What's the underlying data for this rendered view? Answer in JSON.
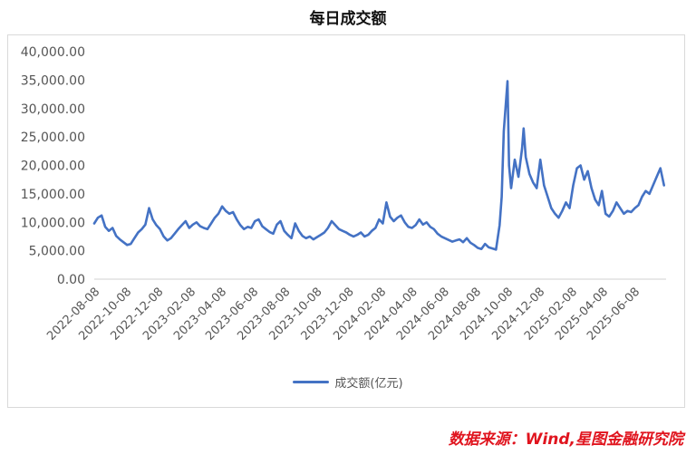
{
  "colors": {
    "series": "#4472c4",
    "source": "#e0141e",
    "axis": "#d0d0d0"
  },
  "source_text": "数据来源：Wind,星图金融研究院",
  "chart_data": {
    "type": "line",
    "title": "每日成交额",
    "xlabel": "",
    "ylabel": "",
    "ylim": [
      0,
      40000
    ],
    "ytick_labels": [
      "0.00",
      "5,000.00",
      "10,000.00",
      "15,000.00",
      "20,000.00",
      "25,000.00",
      "30,000.00",
      "35,000.00",
      "40,000.00"
    ],
    "xtick_labels": [
      "2022-08-08",
      "2022-10-08",
      "2022-12-08",
      "2023-02-08",
      "2023-04-08",
      "2023-06-08",
      "2023-08-08",
      "2023-10-08",
      "2023-12-08",
      "2024-02-08",
      "2024-04-08",
      "2024-06-08",
      "2024-08-08",
      "2024-10-08",
      "2024-12-08",
      "2025-02-08",
      "2025-04-08",
      "2025-06-08"
    ],
    "x_range": [
      "2022-08-08",
      "2025-08-08"
    ],
    "grid": false,
    "legend": "bottom",
    "series": [
      {
        "name": "成交额(亿元)",
        "points": [
          [
            "2022-08-08",
            9800
          ],
          [
            "2022-08-15",
            10800
          ],
          [
            "2022-08-22",
            11200
          ],
          [
            "2022-08-29",
            9200
          ],
          [
            "2022-09-05",
            8500
          ],
          [
            "2022-09-12",
            9000
          ],
          [
            "2022-09-19",
            7600
          ],
          [
            "2022-09-26",
            7000
          ],
          [
            "2022-10-03",
            6500
          ],
          [
            "2022-10-10",
            6000
          ],
          [
            "2022-10-17",
            6200
          ],
          [
            "2022-10-24",
            7200
          ],
          [
            "2022-10-31",
            8200
          ],
          [
            "2022-11-07",
            8800
          ],
          [
            "2022-11-14",
            9600
          ],
          [
            "2022-11-21",
            12500
          ],
          [
            "2022-11-28",
            10500
          ],
          [
            "2022-12-05",
            9500
          ],
          [
            "2022-12-12",
            8800
          ],
          [
            "2022-12-19",
            7500
          ],
          [
            "2022-12-26",
            6800
          ],
          [
            "2023-01-02",
            7200
          ],
          [
            "2023-01-09",
            8000
          ],
          [
            "2023-01-16",
            8800
          ],
          [
            "2023-01-23",
            9500
          ],
          [
            "2023-01-30",
            10200
          ],
          [
            "2023-02-06",
            9000
          ],
          [
            "2023-02-13",
            9600
          ],
          [
            "2023-02-20",
            10000
          ],
          [
            "2023-02-27",
            9300
          ],
          [
            "2023-03-06",
            9000
          ],
          [
            "2023-03-13",
            8800
          ],
          [
            "2023-03-20",
            9800
          ],
          [
            "2023-03-27",
            10800
          ],
          [
            "2023-04-03",
            11500
          ],
          [
            "2023-04-10",
            12800
          ],
          [
            "2023-04-17",
            12000
          ],
          [
            "2023-04-24",
            11500
          ],
          [
            "2023-05-01",
            11800
          ],
          [
            "2023-05-08",
            10500
          ],
          [
            "2023-05-15",
            9500
          ],
          [
            "2023-05-22",
            8800
          ],
          [
            "2023-05-29",
            9200
          ],
          [
            "2023-06-05",
            9000
          ],
          [
            "2023-06-12",
            10200
          ],
          [
            "2023-06-19",
            10500
          ],
          [
            "2023-06-26",
            9300
          ],
          [
            "2023-07-03",
            8800
          ],
          [
            "2023-07-10",
            8300
          ],
          [
            "2023-07-17",
            8000
          ],
          [
            "2023-07-24",
            9600
          ],
          [
            "2023-07-31",
            10200
          ],
          [
            "2023-08-07",
            8500
          ],
          [
            "2023-08-14",
            7800
          ],
          [
            "2023-08-21",
            7200
          ],
          [
            "2023-08-28",
            9800
          ],
          [
            "2023-09-04",
            8500
          ],
          [
            "2023-09-11",
            7600
          ],
          [
            "2023-09-18",
            7200
          ],
          [
            "2023-09-25",
            7500
          ],
          [
            "2023-10-02",
            7000
          ],
          [
            "2023-10-09",
            7400
          ],
          [
            "2023-10-16",
            7800
          ],
          [
            "2023-10-23",
            8200
          ],
          [
            "2023-10-30",
            9000
          ],
          [
            "2023-11-06",
            10200
          ],
          [
            "2023-11-13",
            9500
          ],
          [
            "2023-11-20",
            8800
          ],
          [
            "2023-11-27",
            8500
          ],
          [
            "2023-12-04",
            8200
          ],
          [
            "2023-12-11",
            7800
          ],
          [
            "2023-12-18",
            7500
          ],
          [
            "2023-12-25",
            7800
          ],
          [
            "2024-01-01",
            8200
          ],
          [
            "2024-01-08",
            7500
          ],
          [
            "2024-01-15",
            7800
          ],
          [
            "2024-01-22",
            8500
          ],
          [
            "2024-01-29",
            9000
          ],
          [
            "2024-02-05",
            10500
          ],
          [
            "2024-02-12",
            9800
          ],
          [
            "2024-02-19",
            13500
          ],
          [
            "2024-02-26",
            11000
          ],
          [
            "2024-03-04",
            10200
          ],
          [
            "2024-03-11",
            10800
          ],
          [
            "2024-03-18",
            11200
          ],
          [
            "2024-03-25",
            10000
          ],
          [
            "2024-04-01",
            9200
          ],
          [
            "2024-04-08",
            9000
          ],
          [
            "2024-04-15",
            9500
          ],
          [
            "2024-04-22",
            10500
          ],
          [
            "2024-04-29",
            9600
          ],
          [
            "2024-05-06",
            10000
          ],
          [
            "2024-05-13",
            9200
          ],
          [
            "2024-05-20",
            8800
          ],
          [
            "2024-05-27",
            8000
          ],
          [
            "2024-06-03",
            7500
          ],
          [
            "2024-06-10",
            7200
          ],
          [
            "2024-06-17",
            6900
          ],
          [
            "2024-06-24",
            6600
          ],
          [
            "2024-07-01",
            6800
          ],
          [
            "2024-07-08",
            7000
          ],
          [
            "2024-07-15",
            6500
          ],
          [
            "2024-07-22",
            7200
          ],
          [
            "2024-07-29",
            6400
          ],
          [
            "2024-08-05",
            6000
          ],
          [
            "2024-08-12",
            5500
          ],
          [
            "2024-08-19",
            5300
          ],
          [
            "2024-08-26",
            6200
          ],
          [
            "2024-09-02",
            5600
          ],
          [
            "2024-09-09",
            5400
          ],
          [
            "2024-09-16",
            5200
          ],
          [
            "2024-09-23",
            9500
          ],
          [
            "2024-09-27",
            14500
          ],
          [
            "2024-10-01",
            26000
          ],
          [
            "2024-10-08",
            34800
          ],
          [
            "2024-10-11",
            20000
          ],
          [
            "2024-10-15",
            16000
          ],
          [
            "2024-10-22",
            21000
          ],
          [
            "2024-10-29",
            18000
          ],
          [
            "2024-11-05",
            23000
          ],
          [
            "2024-11-08",
            26500
          ],
          [
            "2024-11-12",
            21500
          ],
          [
            "2024-11-19",
            18500
          ],
          [
            "2024-11-26",
            17000
          ],
          [
            "2024-12-03",
            16000
          ],
          [
            "2024-12-10",
            21000
          ],
          [
            "2024-12-17",
            16500
          ],
          [
            "2024-12-24",
            14500
          ],
          [
            "2024-12-31",
            12500
          ],
          [
            "2025-01-07",
            11500
          ],
          [
            "2025-01-14",
            10800
          ],
          [
            "2025-01-21",
            12000
          ],
          [
            "2025-01-28",
            13500
          ],
          [
            "2025-02-04",
            12500
          ],
          [
            "2025-02-11",
            16500
          ],
          [
            "2025-02-18",
            19500
          ],
          [
            "2025-02-25",
            20000
          ],
          [
            "2025-03-04",
            17500
          ],
          [
            "2025-03-11",
            19000
          ],
          [
            "2025-03-18",
            16000
          ],
          [
            "2025-03-25",
            14000
          ],
          [
            "2025-04-01",
            13000
          ],
          [
            "2025-04-07",
            15500
          ],
          [
            "2025-04-14",
            11500
          ],
          [
            "2025-04-21",
            11000
          ],
          [
            "2025-04-28",
            12000
          ],
          [
            "2025-05-05",
            13500
          ],
          [
            "2025-05-12",
            12500
          ],
          [
            "2025-05-19",
            11500
          ],
          [
            "2025-05-26",
            12000
          ],
          [
            "2025-06-02",
            11800
          ],
          [
            "2025-06-09",
            12500
          ],
          [
            "2025-06-16",
            13000
          ],
          [
            "2025-06-23",
            14500
          ],
          [
            "2025-06-30",
            15500
          ],
          [
            "2025-07-07",
            15000
          ],
          [
            "2025-07-14",
            16500
          ],
          [
            "2025-07-21",
            18000
          ],
          [
            "2025-07-28",
            19500
          ],
          [
            "2025-08-04",
            16500
          ]
        ]
      }
    ]
  }
}
